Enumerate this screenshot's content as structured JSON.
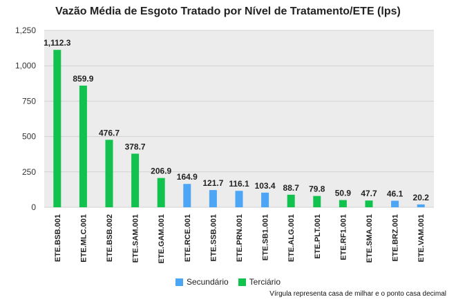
{
  "chart_data": {
    "type": "bar",
    "title": "Vazão Média de Esgoto Tratado por Nível de Tratamento/ETE (lps)",
    "xlabel": "",
    "ylabel": "",
    "ylim": [
      0,
      1250
    ],
    "yticks": [
      "0",
      "250",
      "500",
      "750",
      "1,000",
      "1,250"
    ],
    "ytick_values": [
      0,
      250,
      500,
      750,
      1000,
      1250
    ],
    "grid": true,
    "legend_position": "bottom",
    "categories": [
      "ETE.BSB.001",
      "ETE.MLC.001",
      "ETE.BSB.002",
      "ETE.SAM.001",
      "ETE.GAM.001",
      "ETE.RCE.001",
      "ETE.SSB.001",
      "ETE.PRN.001",
      "ETE.SB1.001",
      "ETE.ALG.001",
      "ETE.PLT.001",
      "ETE.RF1.001",
      "ETE.SMA.001",
      "ETE.BRZ.001",
      "ETE.VAM.001"
    ],
    "values": [
      1112.3,
      859.9,
      476.7,
      378.7,
      206.9,
      164.9,
      121.7,
      116.1,
      103.4,
      88.7,
      79.8,
      50.9,
      47.7,
      46.1,
      20.2
    ],
    "value_labels": [
      "1,112.3",
      "859.9",
      "476.7",
      "378.7",
      "206.9",
      "164.9",
      "121.7",
      "116.1",
      "103.4",
      "88.7",
      "79.8",
      "50.9",
      "47.7",
      "46.1",
      "20.2"
    ],
    "groups": [
      "Terciário",
      "Terciário",
      "Terciário",
      "Terciário",
      "Terciário",
      "Secundário",
      "Secundário",
      "Secundário",
      "Secundário",
      "Terciário",
      "Terciário",
      "Terciário",
      "Terciário",
      "Secundário",
      "Secundário"
    ],
    "series": [
      {
        "name": "Secundário",
        "color": "#4da6f5"
      },
      {
        "name": "Terciário",
        "color": "#12c24e"
      }
    ],
    "footnote": "Vírgula representa casa de milhar e o ponto casa decimal"
  }
}
